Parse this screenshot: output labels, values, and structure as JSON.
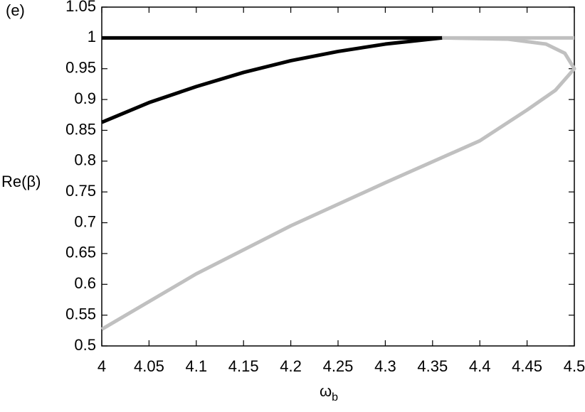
{
  "chart_data": {
    "type": "line",
    "annotation": "(e)",
    "ylabel": "Re(β)",
    "xlabel": "ω",
    "xlabel_subscript": "b",
    "xlim": [
      4,
      4.5
    ],
    "xticks": [
      4,
      4.05,
      4.1,
      4.15,
      4.2,
      4.25,
      4.3,
      4.35,
      4.4,
      4.45,
      4.5
    ],
    "ylim": [
      0.5,
      1.05
    ],
    "yticks": [
      0.5,
      0.55,
      0.6,
      0.65,
      0.7,
      0.75,
      0.8,
      0.85,
      0.9,
      0.95,
      1,
      1.05
    ],
    "grid": false,
    "series": [
      {
        "color": "#000000",
        "x": [
          4,
          4.36
        ],
        "values": [
          1,
          1
        ]
      },
      {
        "color": "#000000",
        "x": [
          4,
          4.05,
          4.1,
          4.15,
          4.2,
          4.25,
          4.3,
          4.36
        ],
        "values": [
          0.863,
          0.895,
          0.921,
          0.944,
          0.963,
          0.978,
          0.99,
          1
        ]
      },
      {
        "color": "#c0c0c0",
        "x": [
          4.36,
          4.5
        ],
        "values": [
          1,
          1
        ]
      },
      {
        "color": "#c0c0c0",
        "x": [
          4,
          4.1,
          4.2,
          4.3,
          4.4,
          4.45,
          4.48,
          4.5,
          4.49,
          4.47,
          4.43,
          4.36
        ],
        "values": [
          0.527,
          0.617,
          0.695,
          0.765,
          0.833,
          0.883,
          0.915,
          0.95,
          0.975,
          0.99,
          0.998,
          1
        ]
      }
    ]
  }
}
